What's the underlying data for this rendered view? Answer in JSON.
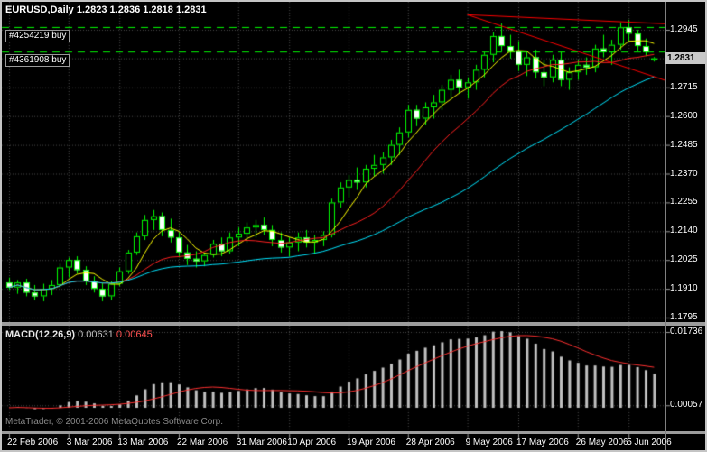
{
  "header": {
    "quote": "EURUSD,Daily 1.2823 1.2836 1.2818 1.2831"
  },
  "orders": [
    {
      "label": "#4254219 buy",
      "price": 1.2956
    },
    {
      "label": "#4361908 buy",
      "price": 1.2858
    }
  ],
  "macd_panel": {
    "title": "MACD(12,26,9)",
    "value_main": "0.00631",
    "value_signal": "0.00645"
  },
  "footer": {
    "watermark": "MetaTrader, © 2001-2006 MetaQuotes Software Corp."
  },
  "chart_data": {
    "type": "candlestick",
    "title": "EURUSD,Daily",
    "ohlc_legend": {
      "open": "1.2823",
      "high": "1.2836",
      "low": "1.2818",
      "close": "1.2831"
    },
    "current_price_label": "1.2831",
    "ylim": [
      1.1777,
      1.305
    ],
    "price_axis": [
      {
        "label": "1.2945",
        "price": 1.2945
      },
      {
        "label": "1.2831",
        "price": 1.2831,
        "current": true
      },
      {
        "label": "1.2715",
        "price": 1.2715
      },
      {
        "label": "1.2600",
        "price": 1.26
      },
      {
        "label": "1.2485",
        "price": 1.2485
      },
      {
        "label": "1.2370",
        "price": 1.237
      },
      {
        "label": "1.2255",
        "price": 1.2255
      },
      {
        "label": "1.2140",
        "price": 1.214
      },
      {
        "label": "1.2025",
        "price": 1.2025
      },
      {
        "label": "1.1910",
        "price": 1.191
      },
      {
        "label": "1.1795",
        "price": 1.1795
      }
    ],
    "x_ticks": [
      {
        "index": 0,
        "label": "22 Feb 2006"
      },
      {
        "index": 7,
        "label": "3 Mar 2006"
      },
      {
        "index": 13,
        "label": "13 Mar 2006"
      },
      {
        "index": 20,
        "label": "22 Mar 2006"
      },
      {
        "index": 27,
        "label": "31 Mar 2006"
      },
      {
        "index": 33,
        "label": "10 Apr 2006"
      },
      {
        "index": 40,
        "label": "19 Apr 2006"
      },
      {
        "index": 47,
        "label": "28 Apr 2006"
      },
      {
        "index": 54,
        "label": "9 May 2006"
      },
      {
        "index": 60,
        "label": "17 May 2006"
      },
      {
        "index": 67,
        "label": "26 May 2006"
      },
      {
        "index": 73,
        "label": "5 Jun 2006"
      }
    ],
    "ohlc": [
      [
        1.1935,
        1.1955,
        1.1905,
        1.1915
      ],
      [
        1.1915,
        1.1945,
        1.189,
        1.1935
      ],
      [
        1.1935,
        1.195,
        1.188,
        1.1895
      ],
      [
        1.1895,
        1.1925,
        1.1865,
        1.188
      ],
      [
        1.188,
        1.193,
        1.186,
        1.191
      ],
      [
        1.191,
        1.1945,
        1.1885,
        1.1925
      ],
      [
        1.1925,
        1.201,
        1.1915,
        1.1995
      ],
      [
        1.1995,
        1.2035,
        1.1955,
        1.2025
      ],
      [
        1.2025,
        1.204,
        1.197,
        1.1985
      ],
      [
        1.1985,
        1.2,
        1.1925,
        1.194
      ],
      [
        1.194,
        1.196,
        1.1895,
        1.191
      ],
      [
        1.191,
        1.1935,
        1.186,
        1.188
      ],
      [
        1.188,
        1.194,
        1.1865,
        1.193
      ],
      [
        1.193,
        1.1995,
        1.192,
        1.198
      ],
      [
        1.198,
        1.2065,
        1.197,
        1.2055
      ],
      [
        1.2055,
        1.2135,
        1.2045,
        1.212
      ],
      [
        1.212,
        1.2205,
        1.2105,
        1.2185
      ],
      [
        1.2185,
        1.2225,
        1.2145,
        1.22
      ],
      [
        1.22,
        1.2215,
        1.212,
        1.2145
      ],
      [
        1.2145,
        1.219,
        1.2095,
        1.2115
      ],
      [
        1.2115,
        1.2135,
        1.2035,
        1.2055
      ],
      [
        1.2055,
        1.2085,
        1.2005,
        1.203
      ],
      [
        1.203,
        1.206,
        1.1995,
        1.202
      ],
      [
        1.202,
        1.2055,
        1.2,
        1.2045
      ],
      [
        1.2045,
        1.2105,
        1.2035,
        1.209
      ],
      [
        1.209,
        1.2115,
        1.204,
        1.206
      ],
      [
        1.206,
        1.2135,
        1.205,
        1.2115
      ],
      [
        1.2115,
        1.2155,
        1.208,
        1.213
      ],
      [
        1.213,
        1.2175,
        1.2095,
        1.2155
      ],
      [
        1.2155,
        1.2185,
        1.2115,
        1.2165
      ],
      [
        1.2165,
        1.2195,
        1.2125,
        1.2145
      ],
      [
        1.2145,
        1.2165,
        1.208,
        1.2105
      ],
      [
        1.2105,
        1.2135,
        1.2055,
        1.2075
      ],
      [
        1.2075,
        1.2115,
        1.204,
        1.2095
      ],
      [
        1.2095,
        1.2135,
        1.206,
        1.2115
      ],
      [
        1.2115,
        1.2145,
        1.2075,
        1.2095
      ],
      [
        1.2095,
        1.2125,
        1.205,
        1.2105
      ],
      [
        1.2105,
        1.214,
        1.208,
        1.2125
      ],
      [
        1.2125,
        1.227,
        1.2115,
        1.2255
      ],
      [
        1.2255,
        1.2335,
        1.2235,
        1.2315
      ],
      [
        1.2315,
        1.2365,
        1.2275,
        1.2345
      ],
      [
        1.2345,
        1.2395,
        1.2305,
        1.2335
      ],
      [
        1.2335,
        1.2405,
        1.2315,
        1.239
      ],
      [
        1.239,
        1.2445,
        1.236,
        1.2405
      ],
      [
        1.2405,
        1.2455,
        1.237,
        1.2435
      ],
      [
        1.2435,
        1.2505,
        1.2405,
        1.2485
      ],
      [
        1.2485,
        1.2555,
        1.2445,
        1.2535
      ],
      [
        1.2535,
        1.2645,
        1.2515,
        1.2625
      ],
      [
        1.2625,
        1.2645,
        1.256,
        1.259
      ],
      [
        1.259,
        1.2655,
        1.2565,
        1.2635
      ],
      [
        1.2635,
        1.2685,
        1.259,
        1.2655
      ],
      [
        1.2655,
        1.2725,
        1.2625,
        1.2705
      ],
      [
        1.2705,
        1.2765,
        1.2665,
        1.2745
      ],
      [
        1.2745,
        1.2785,
        1.269,
        1.2715
      ],
      [
        1.2715,
        1.2755,
        1.267,
        1.2735
      ],
      [
        1.2735,
        1.2805,
        1.2705,
        1.2785
      ],
      [
        1.2785,
        1.2855,
        1.2755,
        1.2845
      ],
      [
        1.2845,
        1.2935,
        1.2815,
        1.292
      ],
      [
        1.292,
        1.297,
        1.286,
        1.288
      ],
      [
        1.288,
        1.2925,
        1.283,
        1.286
      ],
      [
        1.286,
        1.29,
        1.278,
        1.2805
      ],
      [
        1.2805,
        1.2855,
        1.276,
        1.2835
      ],
      [
        1.2835,
        1.2865,
        1.275,
        1.2775
      ],
      [
        1.2775,
        1.2825,
        1.272,
        1.2755
      ],
      [
        1.2755,
        1.2845,
        1.2735,
        1.2825
      ],
      [
        1.2825,
        1.2855,
        1.272,
        1.2745
      ],
      [
        1.2745,
        1.2795,
        1.2705,
        1.2775
      ],
      [
        1.2775,
        1.2825,
        1.2745,
        1.2805
      ],
      [
        1.2805,
        1.2835,
        1.2765,
        1.2795
      ],
      [
        1.2795,
        1.2885,
        1.2775,
        1.287
      ],
      [
        1.287,
        1.2925,
        1.2835,
        1.2855
      ],
      [
        1.2855,
        1.2905,
        1.2805,
        1.2885
      ],
      [
        1.2885,
        1.2975,
        1.2865,
        1.2955
      ],
      [
        1.2955,
        1.2985,
        1.29,
        1.293
      ],
      [
        1.293,
        1.2945,
        1.286,
        1.288
      ],
      [
        1.288,
        1.291,
        1.284,
        1.2855
      ],
      [
        1.2823,
        1.2836,
        1.2818,
        1.2831
      ]
    ],
    "moving_averages": [
      {
        "name": "fast",
        "period": 5,
        "color": "#ffff00"
      },
      {
        "name": "medium",
        "period": 13,
        "color": "#ff2020"
      },
      {
        "name": "slow",
        "period": 34,
        "color": "#00e5ff"
      }
    ],
    "trendlines": [
      {
        "i1": 54,
        "p1": 1.3005,
        "i2": 78,
        "p2": 1.2968,
        "color": "#ff0000"
      },
      {
        "i1": 54,
        "p1": 1.3005,
        "i2": 78,
        "p2": 1.2735,
        "color": "#ff0000"
      }
    ],
    "order_lines_color": "#00ff00",
    "macd": {
      "fast": 12,
      "slow": 26,
      "signal": 9,
      "histogram_color": "#c0c0c0",
      "signal_color": "#ff3030",
      "axis": [
        {
          "label": "0.01736",
          "value": 0.01736
        },
        {
          "label": "0.00057",
          "value": 0.00057
        }
      ]
    },
    "colors": {
      "background": "#000000",
      "grid": "#4a4a4a",
      "bull_fill": "#000000",
      "bear_fill": "#ffffff",
      "candle_border": "#00ff00",
      "scale_text": "#ffffff",
      "current_price_bg": "#c8c8c8"
    }
  }
}
